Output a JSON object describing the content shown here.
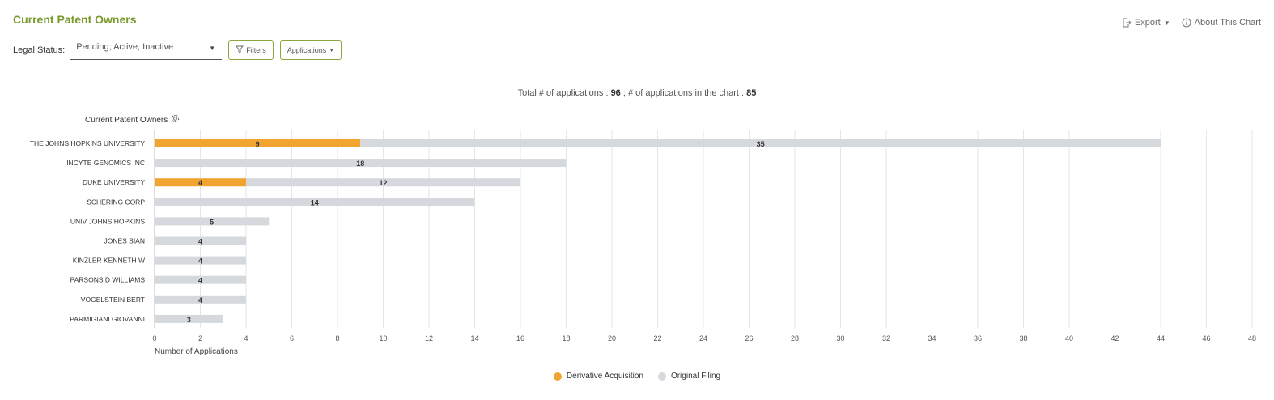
{
  "header": {
    "title": "Current Patent Owners",
    "export_label": "Export",
    "about_label": "About This Chart"
  },
  "filters": {
    "legal_status_label": "Legal Status:",
    "legal_status_value": "Pending; Active; Inactive",
    "filters_button": "Filters",
    "applications_button": "Applications"
  },
  "summary": {
    "total_label": "Total # of applications :",
    "total_value": "96",
    "sep": ";",
    "inchart_label": "# of applications in the chart :",
    "inchart_value": "85"
  },
  "colors": {
    "derivative": "#f2a431",
    "original": "#d5d9dd",
    "accent": "#7a9a2e"
  },
  "chart_data": {
    "type": "bar",
    "orientation": "horizontal",
    "stacked": true,
    "title": "",
    "ylabel": "Current Patent Owners",
    "xlabel": "Number of Applications",
    "xlim": [
      0,
      48
    ],
    "xticks": [
      0,
      2,
      4,
      6,
      8,
      10,
      12,
      14,
      16,
      18,
      20,
      22,
      24,
      26,
      28,
      30,
      32,
      34,
      36,
      38,
      40,
      42,
      44,
      46,
      48
    ],
    "grid": "vertical",
    "legend_position": "bottom",
    "categories": [
      "THE JOHNS HOPKINS UNIVERSITY",
      "INCYTE GENOMICS INC",
      "DUKE UNIVERSITY",
      "SCHERING CORP",
      "UNIV JOHNS HOPKINS",
      "JONES SIAN",
      "KINZLER KENNETH W",
      "PARSONS D WILLIAMS",
      "VOGELSTEIN BERT",
      "PARMIGIANI GIOVANNI"
    ],
    "series": [
      {
        "name": "Derivative Acquisition",
        "values": [
          9,
          0,
          4,
          0,
          0,
          0,
          0,
          0,
          0,
          0
        ]
      },
      {
        "name": "Original Filing",
        "values": [
          35,
          18,
          12,
          14,
          5,
          4,
          4,
          4,
          4,
          3
        ]
      }
    ]
  }
}
